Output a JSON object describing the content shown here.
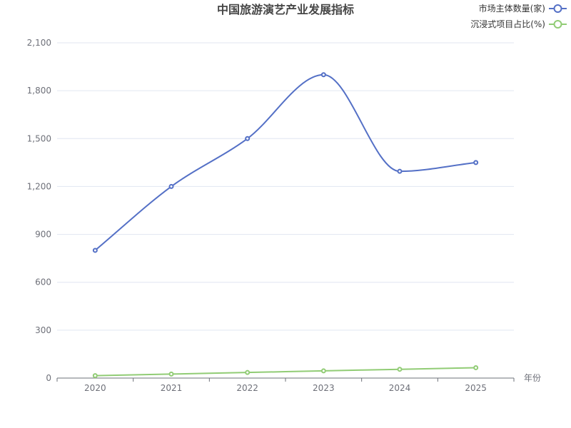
{
  "chart_data": {
    "type": "line",
    "title": "中国旅游演艺产业发展指标",
    "xlabel": "年份",
    "ylabel": "",
    "categories": [
      "2020",
      "2021",
      "2022",
      "2023",
      "2024",
      "2025"
    ],
    "ylim": [
      0,
      2100
    ],
    "yticks": [
      "0",
      "300",
      "600",
      "900",
      "1,200",
      "1,500",
      "1,800",
      "2,100"
    ],
    "grid": true,
    "legend_position": "top-right",
    "series": [
      {
        "name": "市场主体数量(家)",
        "color": "#5470c6",
        "smooth": true,
        "values": [
          800,
          1200,
          1500,
          1900,
          1295,
          1350
        ]
      },
      {
        "name": "沉浸式项目占比(%)",
        "color": "#91cc75",
        "smooth": true,
        "values": [
          15,
          25,
          35,
          45,
          55,
          65
        ]
      }
    ]
  }
}
